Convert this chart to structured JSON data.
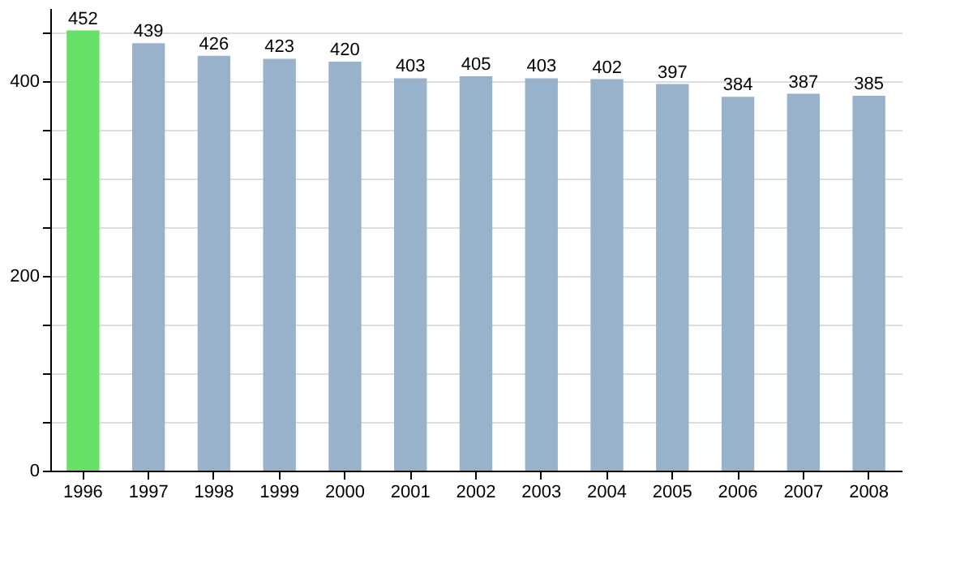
{
  "chart_data": {
    "type": "bar",
    "categories": [
      "1996",
      "1997",
      "1998",
      "1999",
      "2000",
      "2001",
      "2002",
      "2003",
      "2004",
      "2005",
      "2006",
      "2007",
      "2008"
    ],
    "values": [
      452,
      439,
      426,
      423,
      420,
      403,
      405,
      403,
      402,
      397,
      384,
      387,
      385
    ],
    "colors": [
      "#66e066",
      "#99b2cc",
      "#99b2cc",
      "#99b2cc",
      "#99b2cc",
      "#99b2cc",
      "#99b2cc",
      "#99b2cc",
      "#99b2cc",
      "#99b2cc",
      "#99b2cc",
      "#99b2cc",
      "#99b2cc"
    ],
    "ylim": [
      0,
      475
    ],
    "yticks": [
      0,
      {
        "value": 50,
        "label": null
      },
      {
        "value": 100,
        "label": null
      },
      {
        "value": 150,
        "label": null
      },
      200,
      {
        "value": 250,
        "label": null
      },
      {
        "value": 300,
        "label": null
      },
      {
        "value": 350,
        "label": null
      },
      400,
      {
        "value": 450,
        "label": null
      }
    ],
    "grid": "y",
    "data_labels": true
  }
}
